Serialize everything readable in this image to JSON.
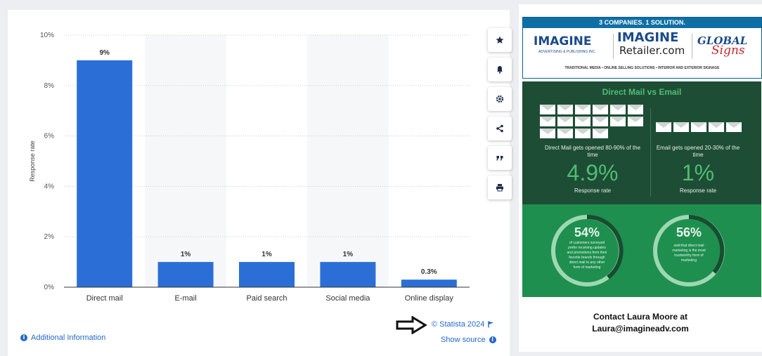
{
  "chart_data": {
    "type": "bar",
    "categories": [
      "Direct mail",
      "E-mail",
      "Paid search",
      "Social media",
      "Online display"
    ],
    "values": [
      9,
      1,
      1,
      1,
      0.3
    ],
    "value_labels": [
      "9%",
      "1%",
      "1%",
      "1%",
      "0.3%"
    ],
    "ylabel": "Response rate",
    "ylim": [
      0,
      10
    ],
    "yticks": [
      0,
      2,
      4,
      6,
      8,
      10
    ],
    "ytick_labels": [
      "0%",
      "2%",
      "4%",
      "6%",
      "8%",
      "10%"
    ],
    "grid": true,
    "bar_color": "#2b6fd6"
  },
  "toolbar": {
    "items": [
      {
        "name": "favorite",
        "icon": "star-icon"
      },
      {
        "name": "notifications",
        "icon": "bell-icon"
      },
      {
        "name": "settings",
        "icon": "gear-icon"
      },
      {
        "name": "share",
        "icon": "share-icon"
      },
      {
        "name": "cite",
        "icon": "quote-icon"
      },
      {
        "name": "print",
        "icon": "print-icon"
      }
    ]
  },
  "footer": {
    "additional_info": "Additional Information",
    "credit": "© Statista 2024",
    "show_source": "Show source"
  },
  "ad": {
    "banner": "3 COMPANIES. 1 SOLUTION.",
    "logo1": "IMAGINE",
    "logo1_sub": "ADVERTISING & PUBLISHING INC.",
    "logo2_top": "IMAGINE",
    "logo2_bottom": "Retailer.com",
    "logo3_top": "GLOBAL",
    "logo3_bottom": "Signs",
    "tagline": "TRADITIONAL MEDIA • ONLINE SELLING SOLUTIONS • INTERIOR AND EXTERIOR SIGNAGE",
    "comparison_title": "Direct Mail vs Email",
    "dm_caption": "Direct Mail gets opened 80-90% of the time",
    "email_caption": "Email gets opened 20-30% of the time",
    "dm_rate": "4.9%",
    "email_rate": "1%",
    "rate_caption": "Response rate",
    "stat1_pct": "54%",
    "stat1_text": "of customers surveyed prefer receiving updates and promotions from their favorite brands through direct mail to any other form of marketing",
    "stat2_pct": "56%",
    "stat2_text": "said that direct mail marketing is the most trustworthy form of marketing",
    "contact_line1": "Contact Laura Moore at",
    "contact_line2": "Laura@imagineadv.com"
  },
  "colors": {
    "link": "#2469c8",
    "dark_green": "#1e4d35",
    "light_green": "#1e8f4f",
    "accent_green": "#4fbd74"
  }
}
